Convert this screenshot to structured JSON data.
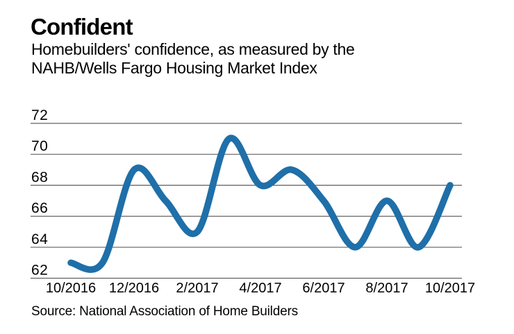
{
  "header": {
    "title": "Confident",
    "subtitle_line1": "Homebuilders' confidence, as measured by the",
    "subtitle_line2": "NAHB/Wells Fargo Housing Market Index"
  },
  "source": "Source: National Association of Home Builders",
  "chart_data": {
    "type": "line",
    "title": "Confident",
    "subtitle": "Homebuilders' confidence, as measured by the NAHB/Wells Fargo Housing Market Index",
    "x": [
      "10/2016",
      "11/2016",
      "12/2016",
      "1/2017",
      "2/2017",
      "3/2017",
      "4/2017",
      "5/2017",
      "6/2017",
      "7/2017",
      "8/2017",
      "9/2017",
      "10/2017"
    ],
    "values": [
      63,
      63,
      69,
      67,
      65,
      71,
      68,
      69,
      67,
      64,
      67,
      64,
      68
    ],
    "x_tick_labels": [
      "10/2016",
      "12/2016",
      "2/2017",
      "4/2017",
      "6/2017",
      "8/2017",
      "10/2017"
    ],
    "y_ticks": [
      62,
      64,
      66,
      68,
      70,
      72
    ],
    "ylim": [
      62,
      72
    ],
    "xlabel": "",
    "ylabel": "",
    "grid": "horizontal",
    "legend_position": "none",
    "line_color": "#1f6fa9",
    "grid_color": "#616161",
    "source": "Source: National Association of Home Builders"
  }
}
